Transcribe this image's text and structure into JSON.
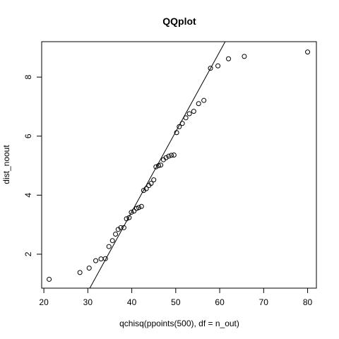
{
  "chart_data": {
    "type": "scatter",
    "title": "QQplot",
    "xlabel": "qchisq(ppoints(500), df = n_out)",
    "ylabel": "dist_noout",
    "xlim": [
      19.5,
      82
    ],
    "ylim": [
      0.85,
      9.2
    ],
    "xticks": [
      20,
      30,
      40,
      50,
      60,
      70,
      80
    ],
    "yticks": [
      2,
      4,
      6,
      8
    ],
    "grid": false,
    "legend": "none",
    "reference_line": {
      "x": [
        30.45,
        61.25
      ],
      "y": [
        0.85,
        9.2
      ]
    },
    "points": [
      {
        "x": 21.2,
        "y": 1.15
      },
      {
        "x": 28.2,
        "y": 1.38
      },
      {
        "x": 30.3,
        "y": 1.53
      },
      {
        "x": 31.8,
        "y": 1.78
      },
      {
        "x": 33.0,
        "y": 1.84
      },
      {
        "x": 34.0,
        "y": 1.85
      },
      {
        "x": 34.8,
        "y": 2.26
      },
      {
        "x": 35.6,
        "y": 2.46
      },
      {
        "x": 36.3,
        "y": 2.68
      },
      {
        "x": 36.9,
        "y": 2.84
      },
      {
        "x": 37.5,
        "y": 2.9
      },
      {
        "x": 38.2,
        "y": 2.9
      },
      {
        "x": 38.8,
        "y": 3.2
      },
      {
        "x": 39.4,
        "y": 3.24
      },
      {
        "x": 39.9,
        "y": 3.42
      },
      {
        "x": 40.5,
        "y": 3.46
      },
      {
        "x": 41.1,
        "y": 3.55
      },
      {
        "x": 41.6,
        "y": 3.58
      },
      {
        "x": 42.2,
        "y": 3.62
      },
      {
        "x": 42.7,
        "y": 4.16
      },
      {
        "x": 43.3,
        "y": 4.22
      },
      {
        "x": 43.9,
        "y": 4.33
      },
      {
        "x": 44.4,
        "y": 4.4
      },
      {
        "x": 45.0,
        "y": 4.52
      },
      {
        "x": 45.5,
        "y": 4.96
      },
      {
        "x": 46.1,
        "y": 5.0
      },
      {
        "x": 46.6,
        "y": 5.02
      },
      {
        "x": 47.2,
        "y": 5.2
      },
      {
        "x": 47.8,
        "y": 5.27
      },
      {
        "x": 48.4,
        "y": 5.32
      },
      {
        "x": 49.0,
        "y": 5.35
      },
      {
        "x": 49.6,
        "y": 5.36
      },
      {
        "x": 50.2,
        "y": 6.12
      },
      {
        "x": 50.8,
        "y": 6.32
      },
      {
        "x": 51.5,
        "y": 6.43
      },
      {
        "x": 52.3,
        "y": 6.62
      },
      {
        "x": 53.1,
        "y": 6.76
      },
      {
        "x": 54.1,
        "y": 6.84
      },
      {
        "x": 55.2,
        "y": 7.1
      },
      {
        "x": 56.4,
        "y": 7.21
      },
      {
        "x": 57.9,
        "y": 8.3
      },
      {
        "x": 59.6,
        "y": 8.38
      },
      {
        "x": 62.0,
        "y": 8.62
      },
      {
        "x": 65.6,
        "y": 8.7
      },
      {
        "x": 80.0,
        "y": 8.85
      }
    ]
  }
}
